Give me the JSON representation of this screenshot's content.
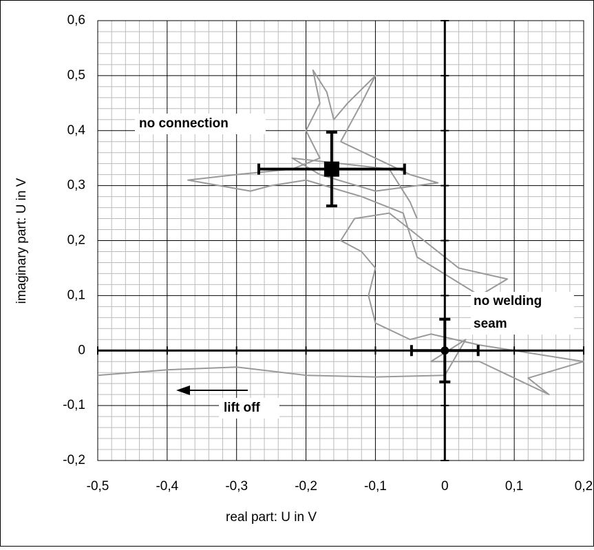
{
  "chart_data": {
    "type": "scatter",
    "xlabel": "real part: U in V",
    "ylabel": "imaginary part: U in V",
    "xlim": [
      -0.5,
      0.2
    ],
    "ylim": [
      -0.2,
      0.6
    ],
    "xticks": [
      {
        "value": -0.5,
        "label": "-0,5"
      },
      {
        "value": -0.4,
        "label": "-0,4"
      },
      {
        "value": -0.3,
        "label": "-0,3"
      },
      {
        "value": -0.2,
        "label": "-0,2"
      },
      {
        "value": -0.1,
        "label": "-0,1"
      },
      0,
      {
        "value": 0.1,
        "label": "0,1"
      },
      {
        "value": 0.2,
        "label": "0,2"
      }
    ],
    "yticks": [
      {
        "value": -0.2,
        "label": "-0,2"
      },
      {
        "value": -0.1,
        "label": "-0,1"
      },
      0,
      {
        "value": 0.1,
        "label": "0,1"
      },
      {
        "value": 0.2,
        "label": "0,2"
      },
      {
        "value": 0.3,
        "label": "0,3"
      },
      {
        "value": 0.4,
        "label": "0,4"
      },
      {
        "value": 0.5,
        "label": "0,5"
      },
      {
        "value": 0.6,
        "label": "0,6"
      }
    ],
    "grid": true,
    "minor_grid_divisions": 5,
    "series": [
      {
        "color": "#999999",
        "x": [
          -0.5,
          -0.45,
          -0.4,
          -0.3,
          -0.2,
          -0.1,
          0,
          0.03,
          -0.02,
          0.05,
          0.1,
          0.15,
          0.12,
          0.2,
          0.05,
          -0.02,
          -0.05,
          -0.1,
          -0.11,
          -0.1,
          -0.12,
          -0.15,
          -0.13,
          -0.08,
          -0.05,
          -0.03,
          0.02,
          0.09,
          0.05,
          -0.04,
          -0.06,
          -0.12,
          -0.2,
          -0.25,
          -0.28,
          -0.37,
          -0.3,
          -0.22,
          -0.18,
          -0.2,
          -0.18,
          -0.19,
          -0.17,
          -0.16,
          -0.14,
          -0.1,
          -0.12,
          -0.15,
          -0.1,
          -0.05,
          -0.01,
          -0.1,
          -0.18,
          -0.22,
          -0.15,
          -0.08,
          -0.05,
          -0.04
        ],
        "y": [
          -0.045,
          -0.04,
          -0.035,
          -0.03,
          -0.045,
          -0.048,
          -0.045,
          0.02,
          -0.02,
          -0.02,
          -0.05,
          -0.08,
          -0.05,
          -0.02,
          0.01,
          0.03,
          0.02,
          0.05,
          0.1,
          0.15,
          0.18,
          0.2,
          0.24,
          0.25,
          0.22,
          0.2,
          0.15,
          0.13,
          0.1,
          0.17,
          0.25,
          0.28,
          0.31,
          0.3,
          0.29,
          0.31,
          0.32,
          0.33,
          0.35,
          0.4,
          0.45,
          0.51,
          0.47,
          0.42,
          0.45,
          0.5,
          0.45,
          0.38,
          0.35,
          0.32,
          0.305,
          0.29,
          0.32,
          0.35,
          0.34,
          0.33,
          0.27,
          0.24
        ]
      }
    ],
    "markers": [
      {
        "x": -0.163,
        "y": 0.33,
        "xerr": 0.105,
        "yerr": 0.067,
        "shape": "square",
        "color": "#000000"
      },
      {
        "x": 0,
        "y": 0,
        "xerr": 0.048,
        "yerr": 0.057,
        "shape": "circle",
        "color": "#000000"
      }
    ],
    "annotations": [
      {
        "lines": [
          "no connection"
        ]
      },
      {
        "lines": [
          "no welding",
          "seam"
        ]
      },
      {
        "lines": [
          "lift off"
        ]
      }
    ]
  }
}
